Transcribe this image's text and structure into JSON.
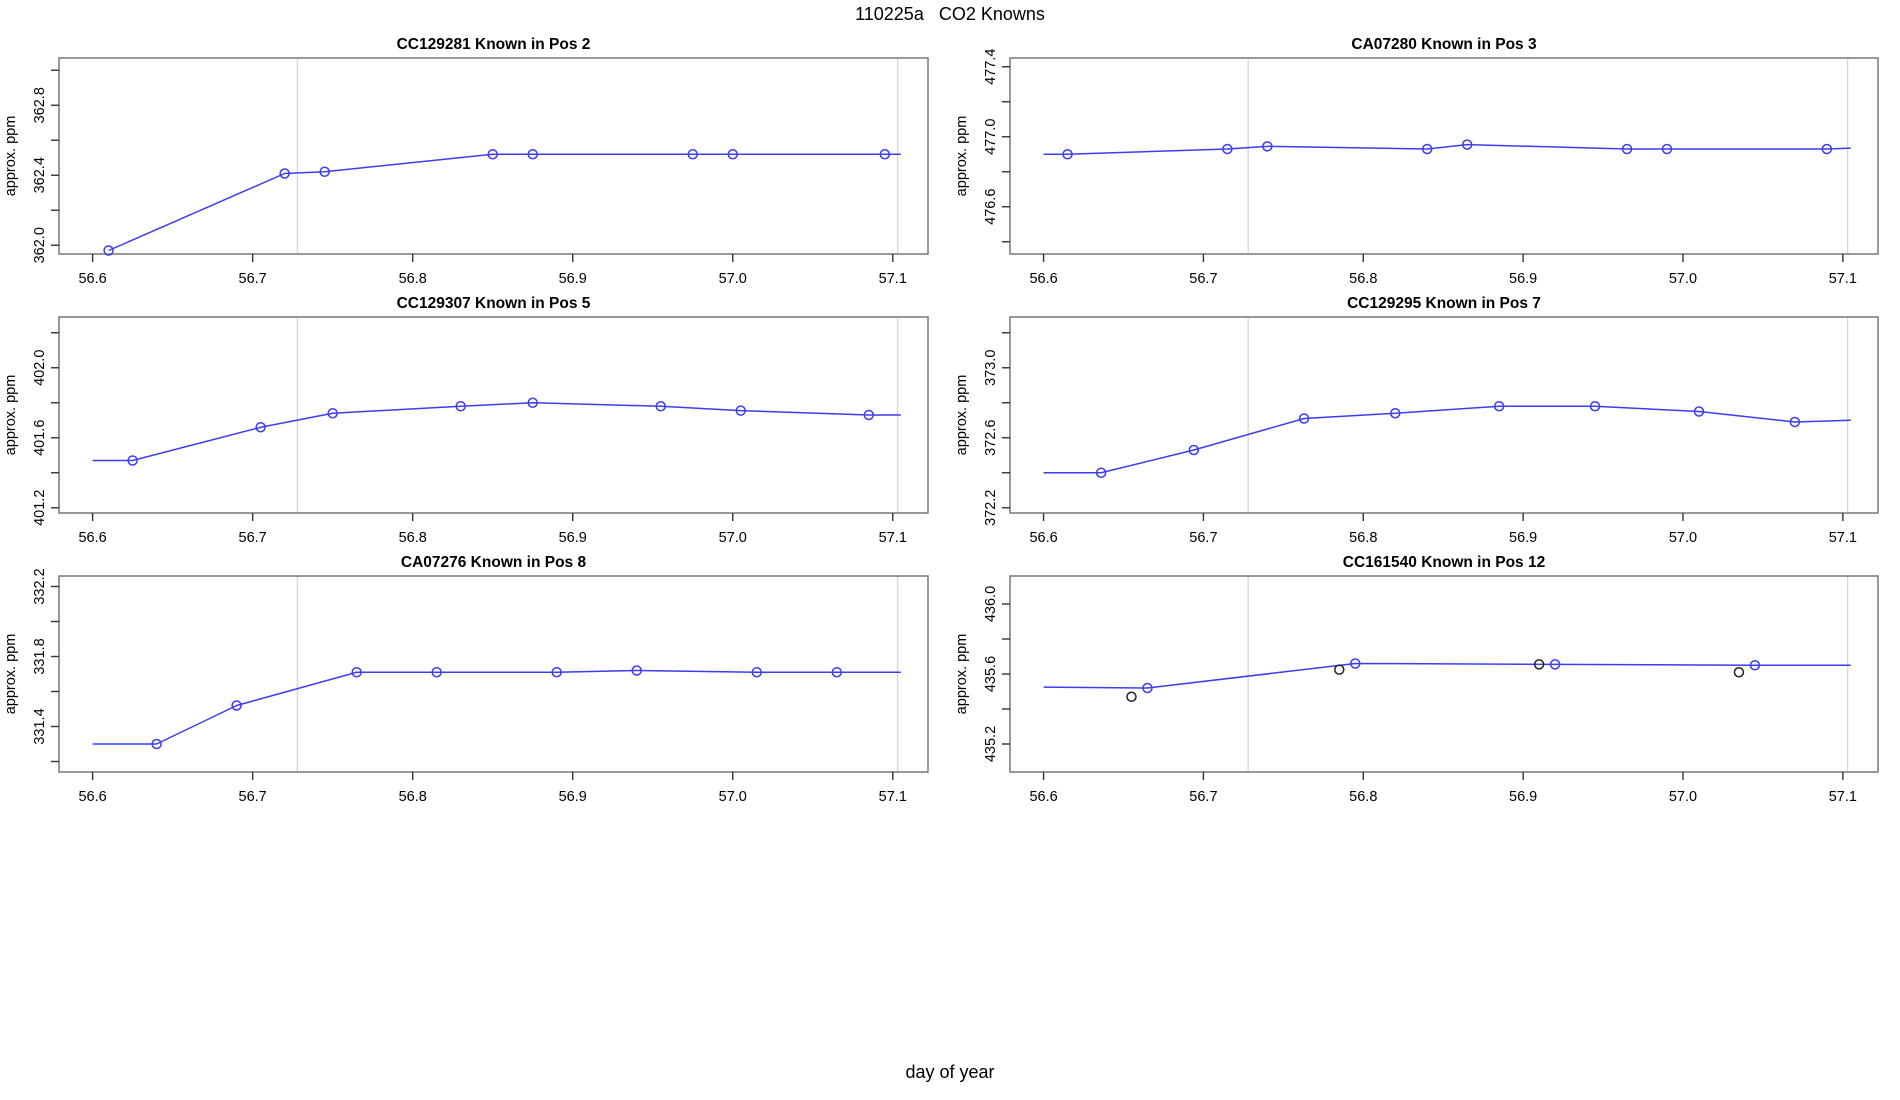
{
  "page": {
    "title": "110225a   CO2 Knowns",
    "xlabel": "day of year"
  },
  "colors": {
    "line": "#3c3cf0",
    "marker": "#3c3cf0",
    "marker_extra": "#222222",
    "grid": "#d8d8d8",
    "box": "#777777",
    "tick": "#333333",
    "text": "#000000"
  },
  "chart_data": [
    {
      "type": "line",
      "id": "CC129281",
      "title": "CC129281   Known in Pos 2",
      "ylabel": "approx. ppm",
      "xlim": [
        56.579,
        57.122
      ],
      "ylim": [
        361.95,
        363.07
      ],
      "grid": "vertical-only",
      "legend": "none",
      "xticks": [
        {
          "v": 56.6,
          "label": "56.6"
        },
        {
          "v": 56.7,
          "label": "56.7"
        },
        {
          "v": 56.8,
          "label": "56.8"
        },
        {
          "v": 56.9,
          "label": "56.9"
        },
        {
          "v": 57.0,
          "label": "57.0"
        },
        {
          "v": 57.1,
          "label": "57.1"
        }
      ],
      "yticks": [
        {
          "v": 362.0,
          "label": "362.0"
        },
        {
          "v": 362.2,
          "label": ""
        },
        {
          "v": 362.4,
          "label": "362.4"
        },
        {
          "v": 362.6,
          "label": ""
        },
        {
          "v": 362.8,
          "label": "362.8"
        },
        {
          "v": 363.0,
          "label": ""
        }
      ],
      "gridlines_x": [
        56.728,
        57.103
      ],
      "line": [
        [
          56.61,
          361.97
        ],
        [
          56.72,
          362.41
        ],
        [
          56.745,
          362.42
        ],
        [
          56.85,
          362.52
        ],
        [
          56.875,
          362.52
        ],
        [
          56.975,
          362.52
        ],
        [
          57.0,
          362.52
        ],
        [
          57.095,
          362.52
        ],
        [
          57.105,
          362.52
        ]
      ],
      "points": [
        [
          56.61,
          361.97
        ],
        [
          56.72,
          362.41
        ],
        [
          56.745,
          362.42
        ],
        [
          56.85,
          362.52
        ],
        [
          56.875,
          362.52
        ],
        [
          56.975,
          362.52
        ],
        [
          57.0,
          362.52
        ],
        [
          57.095,
          362.52
        ]
      ],
      "extra_points": []
    },
    {
      "type": "line",
      "id": "CA07280",
      "title": "CA07280   Known in Pos 3",
      "ylabel": "approx. ppm",
      "xlim": [
        56.579,
        57.122
      ],
      "ylim": [
        476.33,
        477.45
      ],
      "grid": "vertical-only",
      "legend": "none",
      "xticks": [
        {
          "v": 56.6,
          "label": "56.6"
        },
        {
          "v": 56.7,
          "label": "56.7"
        },
        {
          "v": 56.8,
          "label": "56.8"
        },
        {
          "v": 56.9,
          "label": "56.9"
        },
        {
          "v": 57.0,
          "label": "57.0"
        },
        {
          "v": 57.1,
          "label": "57.1"
        }
      ],
      "yticks": [
        {
          "v": 476.4,
          "label": ""
        },
        {
          "v": 476.6,
          "label": "476.6"
        },
        {
          "v": 476.8,
          "label": ""
        },
        {
          "v": 477.0,
          "label": "477.0"
        },
        {
          "v": 477.2,
          "label": ""
        },
        {
          "v": 477.4,
          "label": "477.4"
        }
      ],
      "gridlines_x": [
        56.728,
        57.103
      ],
      "line": [
        [
          56.6,
          476.9
        ],
        [
          56.615,
          476.9
        ],
        [
          56.715,
          476.93
        ],
        [
          56.74,
          476.945
        ],
        [
          56.84,
          476.93
        ],
        [
          56.865,
          476.955
        ],
        [
          56.965,
          476.93
        ],
        [
          56.99,
          476.93
        ],
        [
          57.09,
          476.93
        ],
        [
          57.105,
          476.935
        ]
      ],
      "points": [
        [
          56.615,
          476.9
        ],
        [
          56.715,
          476.93
        ],
        [
          56.74,
          476.945
        ],
        [
          56.84,
          476.93
        ],
        [
          56.865,
          476.955
        ],
        [
          56.965,
          476.93
        ],
        [
          56.99,
          476.93
        ],
        [
          57.09,
          476.93
        ]
      ],
      "extra_points": []
    },
    {
      "type": "line",
      "id": "CC129307",
      "title": "CC129307   Known in Pos 5",
      "ylabel": "approx. ppm",
      "xlim": [
        56.579,
        57.122
      ],
      "ylim": [
        401.17,
        402.29
      ],
      "grid": "vertical-only",
      "legend": "none",
      "xticks": [
        {
          "v": 56.6,
          "label": "56.6"
        },
        {
          "v": 56.7,
          "label": "56.7"
        },
        {
          "v": 56.8,
          "label": "56.8"
        },
        {
          "v": 56.9,
          "label": "56.9"
        },
        {
          "v": 57.0,
          "label": "57.0"
        },
        {
          "v": 57.1,
          "label": "57.1"
        }
      ],
      "yticks": [
        {
          "v": 401.2,
          "label": "401.2"
        },
        {
          "v": 401.4,
          "label": ""
        },
        {
          "v": 401.6,
          "label": "401.6"
        },
        {
          "v": 401.8,
          "label": ""
        },
        {
          "v": 402.0,
          "label": "402.0"
        },
        {
          "v": 402.2,
          "label": ""
        }
      ],
      "gridlines_x": [
        56.728,
        57.103
      ],
      "line": [
        [
          56.6,
          401.47
        ],
        [
          56.625,
          401.47
        ],
        [
          56.705,
          401.66
        ],
        [
          56.75,
          401.74
        ],
        [
          56.83,
          401.78
        ],
        [
          56.875,
          401.8
        ],
        [
          56.955,
          401.78
        ],
        [
          57.005,
          401.755
        ],
        [
          57.085,
          401.73
        ],
        [
          57.105,
          401.73
        ]
      ],
      "points": [
        [
          56.625,
          401.47
        ],
        [
          56.705,
          401.66
        ],
        [
          56.75,
          401.74
        ],
        [
          56.83,
          401.78
        ],
        [
          56.875,
          401.8
        ],
        [
          56.955,
          401.78
        ],
        [
          57.005,
          401.755
        ],
        [
          57.085,
          401.73
        ]
      ],
      "extra_points": []
    },
    {
      "type": "line",
      "id": "CC129295",
      "title": "CC129295   Known in Pos 7",
      "ylabel": "approx. ppm",
      "xlim": [
        56.579,
        57.122
      ],
      "ylim": [
        372.17,
        373.29
      ],
      "grid": "vertical-only",
      "legend": "none",
      "xticks": [
        {
          "v": 56.6,
          "label": "56.6"
        },
        {
          "v": 56.7,
          "label": "56.7"
        },
        {
          "v": 56.8,
          "label": "56.8"
        },
        {
          "v": 56.9,
          "label": "56.9"
        },
        {
          "v": 57.0,
          "label": "57.0"
        },
        {
          "v": 57.1,
          "label": "57.1"
        }
      ],
      "yticks": [
        {
          "v": 372.2,
          "label": "372.2"
        },
        {
          "v": 372.4,
          "label": ""
        },
        {
          "v": 372.6,
          "label": "372.6"
        },
        {
          "v": 372.8,
          "label": ""
        },
        {
          "v": 373.0,
          "label": "373.0"
        },
        {
          "v": 373.2,
          "label": ""
        }
      ],
      "gridlines_x": [
        56.728,
        57.103
      ],
      "line": [
        [
          56.6,
          372.4
        ],
        [
          56.636,
          372.4
        ],
        [
          56.694,
          372.53
        ],
        [
          56.763,
          372.71
        ],
        [
          56.82,
          372.74
        ],
        [
          56.885,
          372.78
        ],
        [
          56.945,
          372.78
        ],
        [
          57.01,
          372.75
        ],
        [
          57.07,
          372.69
        ],
        [
          57.105,
          372.7
        ]
      ],
      "points": [
        [
          56.636,
          372.4
        ],
        [
          56.694,
          372.53
        ],
        [
          56.763,
          372.71
        ],
        [
          56.82,
          372.74
        ],
        [
          56.885,
          372.78
        ],
        [
          56.945,
          372.78
        ],
        [
          57.01,
          372.75
        ],
        [
          57.07,
          372.69
        ]
      ],
      "extra_points": []
    },
    {
      "type": "line",
      "id": "CA07276",
      "title": "CA07276   Known in Pos 8",
      "ylabel": "approx. ppm",
      "xlim": [
        56.579,
        57.122
      ],
      "ylim": [
        331.14,
        332.26
      ],
      "grid": "vertical-only",
      "legend": "none",
      "xticks": [
        {
          "v": 56.6,
          "label": "56.6"
        },
        {
          "v": 56.7,
          "label": "56.7"
        },
        {
          "v": 56.8,
          "label": "56.8"
        },
        {
          "v": 56.9,
          "label": "56.9"
        },
        {
          "v": 57.0,
          "label": "57.0"
        },
        {
          "v": 57.1,
          "label": "57.1"
        }
      ],
      "yticks": [
        {
          "v": 331.2,
          "label": ""
        },
        {
          "v": 331.4,
          "label": "331.4"
        },
        {
          "v": 331.6,
          "label": ""
        },
        {
          "v": 331.8,
          "label": "331.8"
        },
        {
          "v": 332.0,
          "label": ""
        },
        {
          "v": 332.2,
          "label": "332.2"
        }
      ],
      "gridlines_x": [
        56.728,
        57.103
      ],
      "line": [
        [
          56.6,
          331.3
        ],
        [
          56.64,
          331.3
        ],
        [
          56.69,
          331.52
        ],
        [
          56.765,
          331.71
        ],
        [
          56.815,
          331.71
        ],
        [
          56.89,
          331.71
        ],
        [
          56.94,
          331.72
        ],
        [
          57.015,
          331.71
        ],
        [
          57.065,
          331.71
        ],
        [
          57.105,
          331.71
        ]
      ],
      "points": [
        [
          56.64,
          331.3
        ],
        [
          56.69,
          331.52
        ],
        [
          56.765,
          331.71
        ],
        [
          56.815,
          331.71
        ],
        [
          56.89,
          331.71
        ],
        [
          56.94,
          331.72
        ],
        [
          57.015,
          331.71
        ],
        [
          57.065,
          331.71
        ]
      ],
      "extra_points": []
    },
    {
      "type": "line",
      "id": "CC161540",
      "title": "CC161540   Known in Pos 12",
      "ylabel": "approx. ppm",
      "xlim": [
        56.579,
        57.122
      ],
      "ylim": [
        435.04,
        436.16
      ],
      "grid": "vertical-only",
      "legend": "none",
      "xticks": [
        {
          "v": 56.6,
          "label": "56.6"
        },
        {
          "v": 56.7,
          "label": "56.7"
        },
        {
          "v": 56.8,
          "label": "56.8"
        },
        {
          "v": 56.9,
          "label": "56.9"
        },
        {
          "v": 57.0,
          "label": "57.0"
        },
        {
          "v": 57.1,
          "label": "57.1"
        }
      ],
      "yticks": [
        {
          "v": 435.2,
          "label": "435.2"
        },
        {
          "v": 435.4,
          "label": ""
        },
        {
          "v": 435.6,
          "label": "435.6"
        },
        {
          "v": 435.8,
          "label": ""
        },
        {
          "v": 436.0,
          "label": "436.0"
        },
        {
          "v": 436.2,
          "label": ""
        }
      ],
      "gridlines_x": [
        56.728,
        57.103
      ],
      "line": [
        [
          56.6,
          435.525
        ],
        [
          56.665,
          435.52
        ],
        [
          56.795,
          435.66
        ],
        [
          56.92,
          435.655
        ],
        [
          57.045,
          435.65
        ],
        [
          57.105,
          435.65
        ]
      ],
      "points": [
        [
          56.665,
          435.52
        ],
        [
          56.795,
          435.66
        ],
        [
          56.92,
          435.655
        ],
        [
          57.045,
          435.65
        ]
      ],
      "extra_points": [
        [
          56.655,
          435.47
        ],
        [
          56.785,
          435.625
        ],
        [
          56.91,
          435.655
        ],
        [
          57.035,
          435.61
        ]
      ]
    }
  ]
}
